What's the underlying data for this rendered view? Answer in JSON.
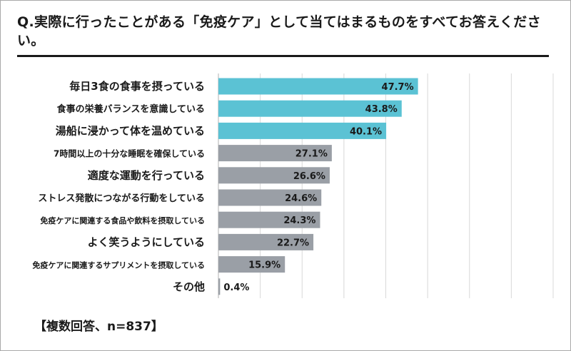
{
  "question": "Q.実際に行ったことがある「免疫ケア」として当てはまるものをすべてお答えください。",
  "note": "【複数回答、n=837】",
  "colors": {
    "highlight": "#5bc2d4",
    "normal": "#9a9fa6",
    "grid": "#d8d8d8",
    "axis": "#b0b0b0"
  },
  "chart_data": {
    "type": "bar",
    "orientation": "horizontal",
    "title": "",
    "xlabel": "",
    "ylabel": "",
    "xlim": [
      0,
      80
    ],
    "unit": "%",
    "grid": true,
    "categories": [
      "毎日3食の食事を摂っている",
      "食事の栄養バランスを意識している",
      "湯船に浸かって体を温めている",
      "7時間以上の十分な睡眠を確保している",
      "適度な運動を行っている",
      "ストレス発散につながる行動をしている",
      "免疫ケアに関連する食品や飲料を摂取している",
      "よく笑うようにしている",
      "免疫ケアに関連するサプリメントを摂取している",
      "その他"
    ],
    "values": [
      47.7,
      43.8,
      40.1,
      27.1,
      26.6,
      24.6,
      24.3,
      22.7,
      15.9,
      0.4
    ],
    "labels": [
      "47.7%",
      "43.8%",
      "40.1%",
      "27.1%",
      "26.6%",
      "24.6%",
      "24.3%",
      "22.7%",
      "15.9%",
      "0.4%"
    ],
    "highlighted": [
      true,
      true,
      true,
      false,
      false,
      false,
      false,
      false,
      false,
      false
    ],
    "label_sizes": [
      15,
      13,
      15,
      12,
      15,
      13,
      11,
      15,
      11,
      15
    ]
  }
}
